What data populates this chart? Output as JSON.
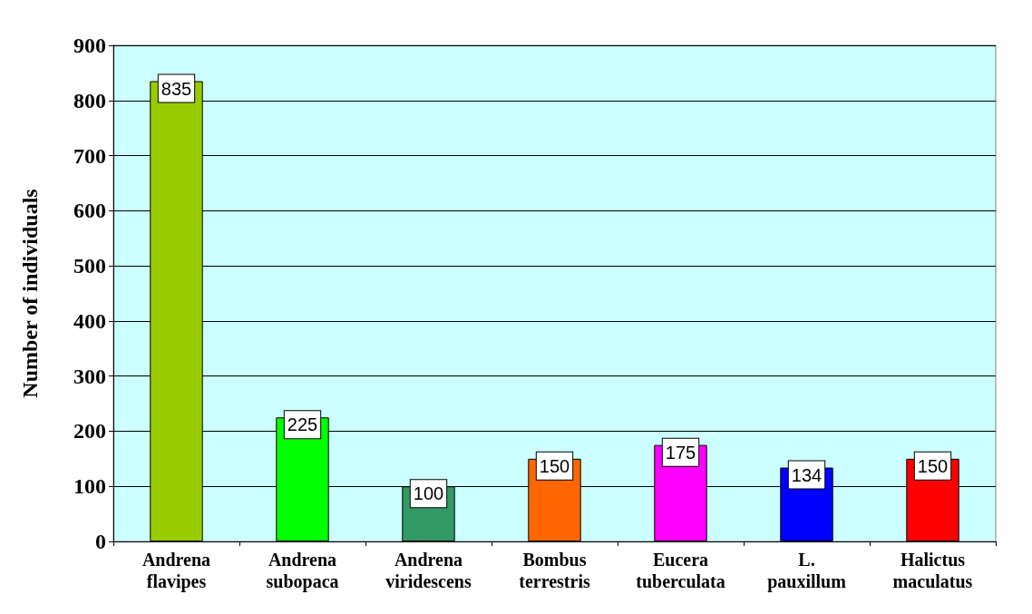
{
  "chart_data": {
    "type": "bar",
    "ylabel": "Number of individuals",
    "categories": [
      "Andrena flavipes",
      "Andrena subopaca",
      "Andrena viridescens",
      "Bombus terrestris",
      "Eucera tuberculata",
      "L. pauxillum",
      "Halictus maculatus"
    ],
    "values": [
      835,
      225,
      100,
      150,
      175,
      134,
      150
    ],
    "colors": [
      "#99cc00",
      "#00ff00",
      "#339966",
      "#ff6600",
      "#ff00ff",
      "#0000ff",
      "#ff0000"
    ],
    "ylim": [
      0,
      900
    ],
    "yticks": [
      0,
      100,
      200,
      300,
      400,
      500,
      600,
      700,
      800,
      900
    ],
    "grid": "y",
    "data_labels": true
  }
}
